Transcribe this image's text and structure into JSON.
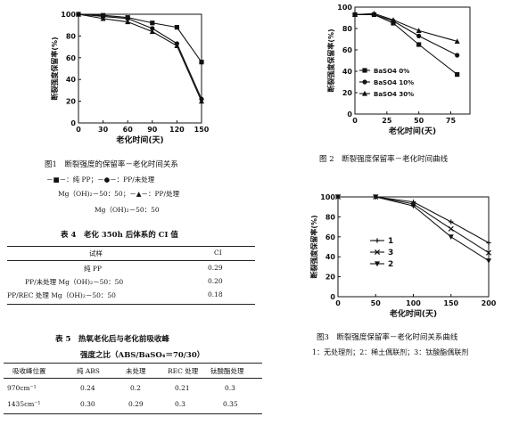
{
  "chart_data": [
    {
      "type": "line",
      "xlabel": "老化时间(天)",
      "ylabel": "断裂强度保留率(%)",
      "xlim": [
        0,
        150
      ],
      "ylim": [
        0,
        100
      ],
      "xticks": [
        0,
        30,
        60,
        90,
        120,
        150
      ],
      "yticks": [
        0,
        20,
        40,
        60,
        80,
        100
      ],
      "series": [
        {
          "marker": "square",
          "x": [
            0,
            30,
            60,
            90,
            120,
            150
          ],
          "y": [
            100,
            99,
            97,
            92,
            88,
            56
          ]
        },
        {
          "marker": "circle",
          "x": [
            0,
            30,
            60,
            90,
            120,
            150
          ],
          "y": [
            100,
            98,
            96,
            87,
            73,
            22
          ]
        },
        {
          "marker": "triangle",
          "x": [
            0,
            30,
            60,
            90,
            120,
            150
          ],
          "y": [
            100,
            96,
            93,
            84,
            71,
            20
          ]
        }
      ]
    },
    {
      "type": "line",
      "xlabel": "老化时间(天)",
      "ylabel": "断裂强度保留率(%)",
      "xlim": [
        0,
        90
      ],
      "ylim": [
        0,
        100
      ],
      "xticks": [
        0,
        25,
        50,
        75
      ],
      "yticks": [
        0,
        20,
        40,
        60,
        80,
        100
      ],
      "legend_position": "lower-left",
      "series": [
        {
          "name": "BaSO4 0%",
          "marker": "square",
          "x": [
            0,
            15,
            30,
            50,
            80
          ],
          "y": [
            93,
            93,
            85,
            65,
            37
          ]
        },
        {
          "name": "BaSO4 10%",
          "marker": "circle",
          "x": [
            0,
            15,
            30,
            50,
            80
          ],
          "y": [
            93,
            93,
            87,
            73,
            55
          ]
        },
        {
          "name": "BaSO4 30%",
          "marker": "triangle",
          "x": [
            0,
            15,
            30,
            50,
            80
          ],
          "y": [
            93,
            94,
            88,
            78,
            68
          ]
        }
      ]
    },
    {
      "type": "line",
      "xlabel": "老化时间(天)",
      "ylabel": "断裂强度保留率(%)",
      "xlim": [
        0,
        200
      ],
      "ylim": [
        0,
        100
      ],
      "xticks": [
        0,
        50,
        100,
        150,
        200
      ],
      "yticks": [
        0,
        20,
        40,
        60,
        80,
        100
      ],
      "legend_position": "inside",
      "series": [
        {
          "name": "1",
          "marker": "plus",
          "x": [
            0,
            50,
            100,
            150,
            200
          ],
          "y": [
            100,
            100,
            95,
            75,
            54
          ]
        },
        {
          "name": "3",
          "marker": "cross",
          "x": [
            0,
            50,
            100,
            150,
            200
          ],
          "y": [
            100,
            100,
            93,
            68,
            44
          ]
        },
        {
          "name": "2",
          "marker": "triangle-down",
          "x": [
            0,
            50,
            100,
            150,
            200
          ],
          "y": [
            100,
            100,
            91,
            60,
            36
          ]
        }
      ]
    }
  ],
  "fig1": {
    "caption": "图1　断裂强度的保留率－老化时间关系",
    "legend_line1": "－■－：纯 PP；－●－：PP/未处理",
    "legend_line2": "Mg（OH)₂－50：50；－▲－：PP/处理",
    "legend_line3": "Mg（OH)₂－50：50"
  },
  "fig2": {
    "caption": "图 2　断裂强度保留率－老化时间曲线"
  },
  "fig3": {
    "caption": "图3　断裂强度保留率－老化时间关系曲线",
    "note": "1：无处理剂；2：稀土偶联剂；3：钛酸酯偶联剂"
  },
  "table4": {
    "caption": "表 4　老化 350h 后体系的 CI 值",
    "headers": [
      "试样",
      "CI"
    ],
    "rows": [
      [
        "纯 PP",
        "0.29"
      ],
      [
        "PP/未处理 Mg（OH)₂－50：50",
        "0.20"
      ],
      [
        "PP/REC 处理 Mg（OH)₂－50：50",
        "0.18"
      ]
    ]
  },
  "table5": {
    "caption": "表 5　热氧老化后与老化前吸收峰",
    "subcaption": "强度之比（ABS/BaSO₄＝70/30）",
    "headers": [
      "吸收峰位置",
      "纯 ABS",
      "未处理",
      "REC 处理",
      "钛酸酯处理"
    ],
    "rows": [
      [
        "970cm⁻¹",
        "0.24",
        "0.2",
        "0.21",
        "0.3"
      ],
      [
        "1435cm⁻¹",
        "0.30",
        "0.29",
        "0.3",
        "0.35"
      ]
    ]
  }
}
